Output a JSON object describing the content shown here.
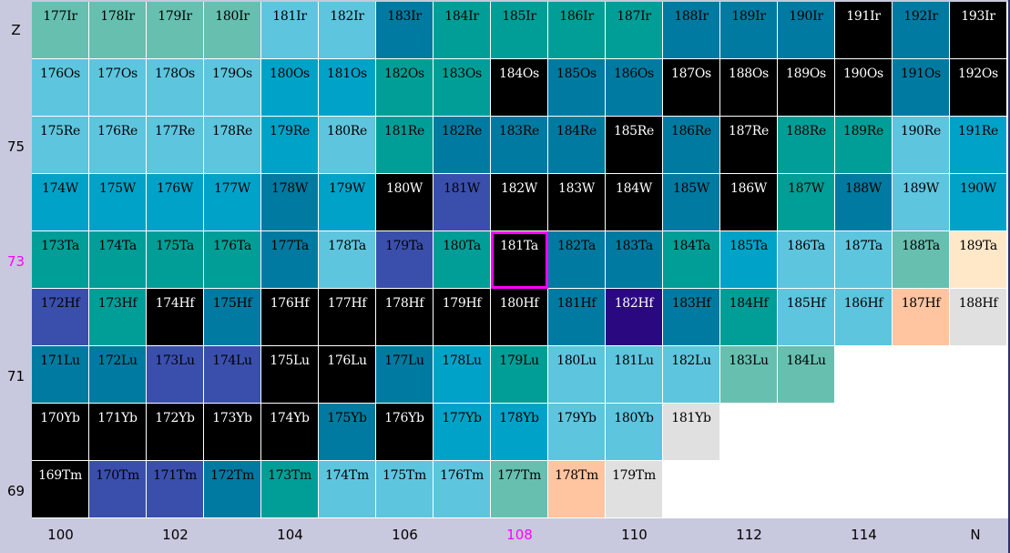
{
  "colors": {
    "A": "#67bfb0",
    "L": "#5ec5de",
    "T": "#009e96",
    "B": "#00a2c8",
    "D": "#007aa0",
    "K": "#000000",
    "I": "#3a4fac",
    "V": "#2a0880",
    "C": "#ffe8c8",
    "O": "#ffc4a0",
    "G": "#e0e0e0"
  },
  "highlight_color": "#ff00ff",
  "axis": {
    "z_label": "Z",
    "n_label": "N",
    "highlight_z": 73,
    "highlight_n": 108,
    "z_ticks": [
      {
        "text": "75",
        "row": 2,
        "hl": false
      },
      {
        "text": "73",
        "row": 4,
        "hl": true
      },
      {
        "text": "71",
        "row": 6,
        "hl": false
      },
      {
        "text": "69",
        "row": 8,
        "hl": false
      }
    ],
    "n_ticks": [
      {
        "text": "100",
        "col": 0,
        "hl": false
      },
      {
        "text": "102",
        "col": 2,
        "hl": false
      },
      {
        "text": "104",
        "col": 4,
        "hl": false
      },
      {
        "text": "106",
        "col": 6,
        "hl": false
      },
      {
        "text": "108",
        "col": 8,
        "hl": true
      },
      {
        "text": "110",
        "col": 10,
        "hl": false
      },
      {
        "text": "112",
        "col": 12,
        "hl": false
      },
      {
        "text": "114",
        "col": 14,
        "hl": false
      }
    ]
  },
  "selected_nuclide": "181Ta",
  "rows": [
    {
      "z": 77,
      "symbol": "Ir",
      "first_a": 177,
      "colors": "AAAALLDTTTTDDDKDK"
    },
    {
      "z": 76,
      "symbol": "Os",
      "first_a": 176,
      "colors": "LLLLBBTTKDDKKKKDK"
    },
    {
      "z": 75,
      "symbol": "Re",
      "first_a": 175,
      "colors": "LLLLBLTDDDKDKTTLB"
    },
    {
      "z": 74,
      "symbol": "W",
      "first_a": 174,
      "colors": "BBBBDBKIKKKDKTDLB"
    },
    {
      "z": 73,
      "symbol": "Ta",
      "first_a": 173,
      "colors": "TTTTDLITKDDTBLLAC"
    },
    {
      "z": 72,
      "symbol": "Hf",
      "first_a": 172,
      "colors": "ITKDKKKKKDVDTLLOG"
    },
    {
      "z": 71,
      "symbol": "Lu",
      "first_a": 171,
      "colors": "DDIIKKDBTLLLAA"
    },
    {
      "z": 70,
      "symbol": "Yb",
      "first_a": 170,
      "colors": "KKKKKDKBBLLG"
    },
    {
      "z": 69,
      "symbol": "Tm",
      "first_a": 169,
      "colors": "KIIDTLLLAOG"
    }
  ]
}
